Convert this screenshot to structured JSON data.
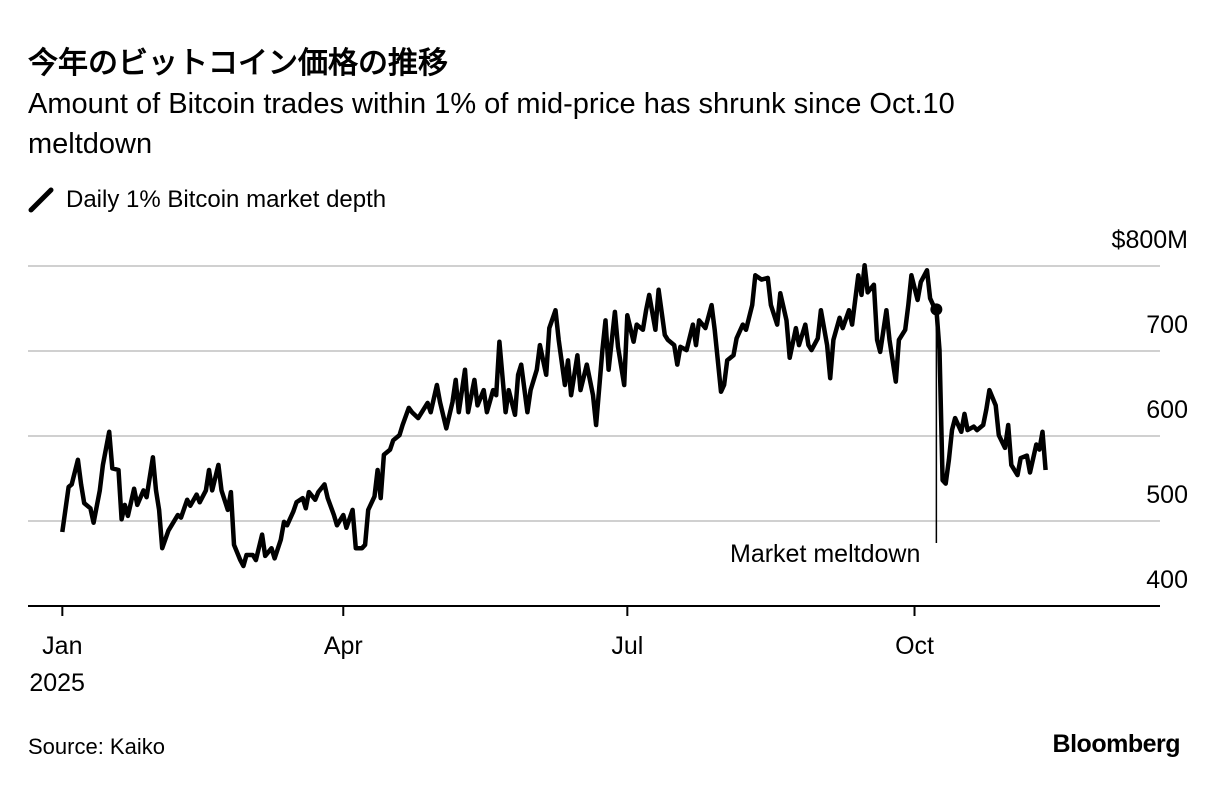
{
  "chart_data": {
    "type": "line",
    "title": "今年のビットコイン価格の推移",
    "subtitle": "Amount of Bitcoin trades within 1% of mid-price has shrunk since Oct.10 meltdown",
    "source": "Source: Kaiko",
    "brand": "Bloomberg",
    "x": [
      1,
      3,
      4,
      6,
      7,
      8,
      10,
      11,
      13,
      14,
      16,
      17,
      19,
      20,
      21,
      22,
      24,
      25,
      27,
      28,
      30,
      31,
      32,
      33,
      35,
      36,
      38,
      39,
      41,
      42,
      44,
      45,
      47,
      48,
      49,
      51,
      52,
      54,
      55,
      56,
      58,
      59,
      60,
      62,
      63,
      65,
      66,
      68,
      69,
      71,
      72,
      73,
      75,
      76,
      78,
      79,
      80,
      82,
      83,
      85,
      86,
      88,
      89,
      91,
      92,
      94,
      95,
      97,
      98,
      99,
      101,
      102,
      103,
      104,
      106,
      107,
      109,
      110,
      112,
      113,
      115,
      116,
      118,
      119,
      121,
      122,
      124,
      126,
      127,
      128,
      130,
      131,
      133,
      134,
      136,
      137,
      139,
      140,
      141,
      143,
      144,
      146,
      147,
      148,
      150,
      151,
      153,
      154,
      156,
      157,
      159,
      160,
      162,
      163,
      164,
      166,
      167,
      169,
      171,
      172,
      174,
      175,
      176,
      178,
      179,
      181,
      182,
      184,
      185,
      187,
      188,
      189,
      191,
      192,
      194,
      195,
      197,
      198,
      199,
      201,
      203,
      204,
      205,
      207,
      209,
      210,
      212,
      213,
      214,
      216,
      217,
      219,
      220,
      222,
      223,
      225,
      227,
      228,
      230,
      231,
      233,
      234,
      236,
      237,
      239,
      240,
      241,
      243,
      244,
      246,
      247,
      248,
      250,
      251,
      253,
      254,
      256,
      257,
      258,
      259,
      261,
      262,
      263,
      265,
      266,
      268,
      269,
      271,
      272,
      273,
      275,
      276,
      278,
      279,
      280,
      281,
      282,
      283,
      284,
      285,
      286,
      287,
      289,
      290,
      291,
      293,
      294,
      296,
      297,
      298,
      300,
      301,
      303,
      304,
      305,
      307,
      308,
      310,
      311,
      313,
      314,
      315,
      316
    ],
    "series": [
      {
        "name": "Daily 1% Bitcoin market depth",
        "color": "#000000",
        "values": [
          487,
          540,
          543,
          572,
          543,
          521,
          515,
          498,
          536,
          566,
          605,
          562,
          560,
          502,
          519,
          506,
          538,
          519,
          536,
          528,
          575,
          536,
          513,
          468,
          489,
          495,
          507,
          504,
          525,
          518,
          531,
          522,
          536,
          560,
          536,
          566,
          536,
          513,
          534,
          472,
          454,
          447,
          460,
          460,
          454,
          484,
          459,
          468,
          456,
          478,
          499,
          495,
          511,
          522,
          527,
          515,
          534,
          525,
          534,
          543,
          527,
          507,
          495,
          507,
          492,
          513,
          468,
          468,
          472,
          513,
          529,
          560,
          527,
          578,
          584,
          595,
          601,
          613,
          633,
          628,
          621,
          627,
          639,
          628,
          660,
          640,
          609,
          640,
          666,
          628,
          678,
          628,
          666,
          636,
          654,
          628,
          654,
          648,
          711,
          628,
          654,
          625,
          672,
          684,
          628,
          654,
          678,
          707,
          672,
          727,
          748,
          713,
          660,
          689,
          648,
          695,
          654,
          684,
          648,
          613,
          701,
          736,
          678,
          746,
          705,
          660,
          742,
          711,
          731,
          725,
          748,
          766,
          725,
          772,
          719,
          713,
          707,
          684,
          705,
          701,
          731,
          707,
          736,
          727,
          754,
          725,
          652,
          660,
          689,
          695,
          715,
          731,
          725,
          754,
          789,
          784,
          786,
          754,
          731,
          768,
          736,
          692,
          727,
          707,
          731,
          707,
          701,
          715,
          748,
          707,
          668,
          713,
          739,
          727,
          748,
          731,
          789,
          766,
          801,
          769,
          778,
          713,
          699,
          748,
          713,
          664,
          713,
          725,
          754,
          789,
          760,
          781,
          795,
          762,
          754,
          749,
          701,
          548,
          544,
          572,
          607,
          621,
          605,
          626,
          607,
          611,
          607,
          613,
          631,
          654,
          636,
          601,
          586,
          613,
          566,
          554,
          574,
          577,
          557,
          590,
          584,
          605,
          560
        ]
      }
    ],
    "xlim": [
      -10,
      352
    ],
    "xticks": [
      {
        "value": 1,
        "label": "Jan"
      },
      {
        "value": 91,
        "label": "Apr"
      },
      {
        "value": 182,
        "label": "Jul"
      },
      {
        "value": 274,
        "label": "Oct"
      }
    ],
    "xtick_year": "2025",
    "ylim": [
      400,
      800
    ],
    "yticks": [
      400,
      500,
      600,
      700,
      {
        "value": 800,
        "label": "$800M"
      }
    ],
    "grid": true,
    "annotation": {
      "text": "Market meltdown",
      "x": 281
    }
  }
}
